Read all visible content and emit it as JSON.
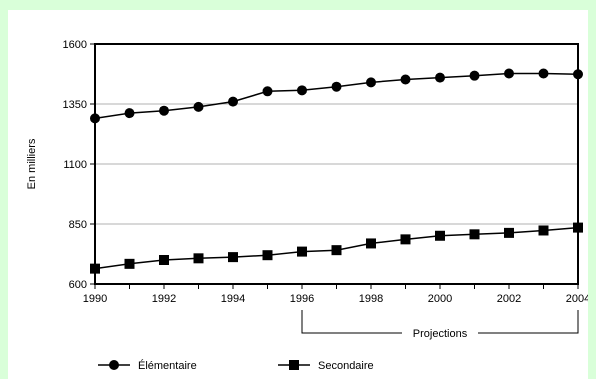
{
  "colors": {
    "page_background": "#d9ffd9",
    "panel_background": "#ffffff",
    "ink": "#000000",
    "gridline": "#999999"
  },
  "chart_data": {
    "type": "line",
    "title": "",
    "xlabel": "",
    "ylabel": "En milliers",
    "x": [
      1990,
      1991,
      1992,
      1993,
      1994,
      1995,
      1996,
      1997,
      1998,
      1999,
      2000,
      2001,
      2002,
      2003,
      2004
    ],
    "xlim": [
      1990,
      2004
    ],
    "ylim": [
      600,
      1600
    ],
    "x_ticks": [
      1990,
      1992,
      1994,
      1996,
      1998,
      2000,
      2002,
      2004
    ],
    "x_tick_labels": [
      "1990",
      "1992",
      "1994",
      "1996",
      "1998",
      "2000",
      "2002",
      "2004"
    ],
    "y_ticks": [
      600,
      850,
      1100,
      1350,
      1600
    ],
    "y_tick_labels": [
      "600",
      "850",
      "1100",
      "1350",
      "1600"
    ],
    "grid": "horizontal",
    "legend_position": "bottom",
    "annotation": {
      "text": "Projections",
      "x_start": 1996,
      "x_end": 2004
    },
    "series": [
      {
        "name": "Élémentaire",
        "marker": "circle",
        "values": [
          1290,
          1312,
          1322,
          1338,
          1360,
          1403,
          1407,
          1422,
          1440,
          1452,
          1460,
          1468,
          1477,
          1477,
          1474
        ]
      },
      {
        "name": "Secondaire",
        "marker": "square",
        "values": [
          664,
          684,
          700,
          707,
          712,
          720,
          735,
          741,
          769,
          786,
          801,
          807,
          813,
          823,
          835
        ]
      }
    ]
  }
}
